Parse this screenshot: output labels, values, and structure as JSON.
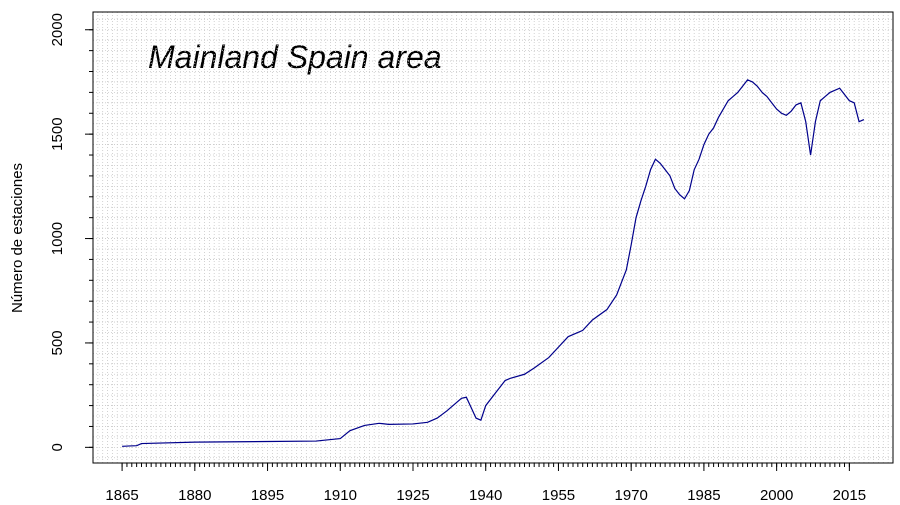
{
  "chart_data": {
    "type": "line",
    "title": "Mainland Spain area",
    "y_label": "Número de estaciones",
    "x": [
      1865,
      1868,
      1869,
      1880,
      1895,
      1905,
      1910,
      1912,
      1915,
      1918,
      1920,
      1925,
      1928,
      1930,
      1932,
      1934,
      1935,
      1936,
      1937,
      1938,
      1939,
      1940,
      1942,
      1944,
      1945,
      1948,
      1950,
      1953,
      1955,
      1957,
      1960,
      1962,
      1965,
      1967,
      1969,
      1970,
      1971,
      1972,
      1973,
      1974,
      1975,
      1976,
      1977,
      1978,
      1979,
      1980,
      1981,
      1982,
      1983,
      1984,
      1985,
      1986,
      1987,
      1988,
      1989,
      1990,
      1991,
      1992,
      1993,
      1994,
      1995,
      1996,
      1997,
      1998,
      1999,
      2000,
      2001,
      2002,
      2003,
      2004,
      2005,
      2006,
      2007,
      2008,
      2009,
      2010,
      2011,
      2012,
      2013,
      2014,
      2015,
      2016,
      2017,
      2018
    ],
    "series": [
      {
        "name": "Número de estaciones",
        "color": "#00008b",
        "values": [
          5,
          8,
          18,
          25,
          28,
          30,
          42,
          80,
          105,
          115,
          110,
          112,
          120,
          140,
          175,
          215,
          235,
          240,
          190,
          140,
          130,
          200,
          260,
          320,
          330,
          350,
          380,
          430,
          480,
          530,
          560,
          610,
          660,
          730,
          850,
          970,
          1100,
          1180,
          1250,
          1330,
          1380,
          1360,
          1330,
          1300,
          1240,
          1210,
          1190,
          1230,
          1330,
          1380,
          1450,
          1500,
          1530,
          1580,
          1620,
          1660,
          1680,
          1700,
          1730,
          1760,
          1750,
          1730,
          1700,
          1680,
          1650,
          1620,
          1600,
          1590,
          1610,
          1640,
          1650,
          1560,
          1400,
          1560,
          1660,
          1680,
          1700,
          1710,
          1720,
          1690,
          1660,
          1650,
          1560,
          1570
        ]
      }
    ],
    "xlim": [
      1859,
      2024
    ],
    "ylim": [
      -75,
      2085
    ],
    "xticks": [
      1865,
      1880,
      1895,
      1910,
      1925,
      1940,
      1955,
      1970,
      1985,
      2000,
      2015
    ],
    "yticks": [
      0,
      500,
      1000,
      1500,
      2000
    ],
    "grid": true
  }
}
